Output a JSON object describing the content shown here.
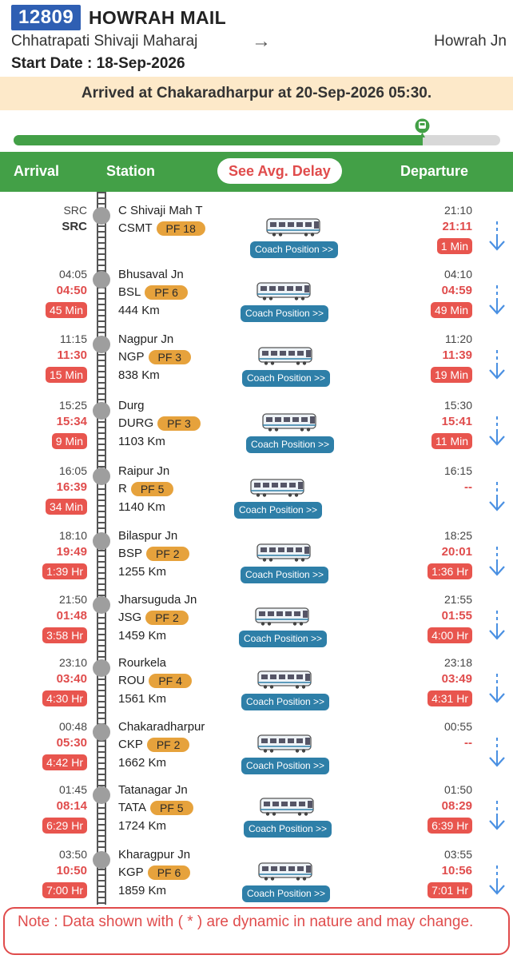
{
  "train": {
    "number": "12809",
    "name": "HOWRAH MAIL",
    "from": "Chhatrapati Shivaji Maharaj",
    "arrow": "→",
    "to": "Howrah Jn",
    "start_date": "Start Date : 18-Sep-2026"
  },
  "status": "Arrived at Chakaradharpur at 20-Sep-2026 05:30.",
  "progress_fraction": 0.84,
  "columns": {
    "arrival": "Arrival",
    "station": "Station",
    "avg_delay_button": "See Avg. Delay",
    "departure": "Departure"
  },
  "coach_button_label": "Coach Position >>",
  "stations": [
    {
      "arr_sched": "SRC",
      "arr_act": "SRC",
      "arr_delay": "",
      "name": "C Shivaji Mah T",
      "code": "CSMT",
      "pf": "PF 18",
      "km": "",
      "dep_sched": "21:10",
      "dep_act": "21:11",
      "dep_delay": "1 Min"
    },
    {
      "arr_sched": "04:05",
      "arr_act": "04:50",
      "arr_delay": "45 Min",
      "name": "Bhusaval Jn",
      "code": "BSL",
      "pf": "PF 6",
      "km": "444 Km",
      "dep_sched": "04:10",
      "dep_act": "04:59",
      "dep_delay": "49 Min"
    },
    {
      "arr_sched": "11:15",
      "arr_act": "11:30",
      "arr_delay": "15 Min",
      "name": "Nagpur Jn",
      "code": "NGP",
      "pf": "PF 3",
      "km": "838 Km",
      "dep_sched": "11:20",
      "dep_act": "11:39",
      "dep_delay": "19 Min"
    },
    {
      "arr_sched": "15:25",
      "arr_act": "15:34",
      "arr_delay": "9 Min",
      "name": "Durg",
      "code": "DURG",
      "pf": "PF 3",
      "km": "1103 Km",
      "dep_sched": "15:30",
      "dep_act": "15:41",
      "dep_delay": "11 Min"
    },
    {
      "arr_sched": "16:05",
      "arr_act": "16:39",
      "arr_delay": "34 Min",
      "name": "Raipur Jn",
      "code": "R",
      "pf": "PF 5",
      "km": "1140 Km",
      "dep_sched": "16:15",
      "dep_act": "--",
      "dep_delay": ""
    },
    {
      "arr_sched": "18:10",
      "arr_act": "19:49",
      "arr_delay": "1:39 Hr",
      "name": "Bilaspur Jn",
      "code": "BSP",
      "pf": "PF 2",
      "km": "1255 Km",
      "dep_sched": "18:25",
      "dep_act": "20:01",
      "dep_delay": "1:36 Hr"
    },
    {
      "arr_sched": "21:50",
      "arr_act": "01:48",
      "arr_delay": "3:58 Hr",
      "name": "Jharsuguda Jn",
      "code": "JSG",
      "pf": "PF 2",
      "km": "1459 Km",
      "dep_sched": "21:55",
      "dep_act": "01:55",
      "dep_delay": "4:00 Hr"
    },
    {
      "arr_sched": "23:10",
      "arr_act": "03:40",
      "arr_delay": "4:30 Hr",
      "name": "Rourkela",
      "code": "ROU",
      "pf": "PF 4",
      "km": "1561 Km",
      "dep_sched": "23:18",
      "dep_act": "03:49",
      "dep_delay": "4:31 Hr"
    },
    {
      "arr_sched": "00:48",
      "arr_act": "05:30",
      "arr_delay": "4:42 Hr",
      "name": "Chakaradharpur",
      "code": "CKP",
      "pf": "PF 2",
      "km": "1662 Km",
      "dep_sched": "00:55",
      "dep_act": "--",
      "dep_delay": ""
    },
    {
      "arr_sched": "01:45",
      "arr_act": "08:14",
      "arr_delay": "6:29 Hr",
      "name": "Tatanagar Jn",
      "code": "TATA",
      "pf": "PF 5",
      "km": "1724 Km",
      "dep_sched": "01:50",
      "dep_act": "08:29",
      "dep_delay": "6:39 Hr"
    },
    {
      "arr_sched": "03:50",
      "arr_act": "10:50",
      "arr_delay": "7:00 Hr",
      "name": "Kharagpur Jn",
      "code": "KGP",
      "pf": "PF 6",
      "km": "1859 Km",
      "dep_sched": "03:55",
      "dep_act": "10:56",
      "dep_delay": "7:01 Hr"
    }
  ],
  "note": "Note : Data shown with ( * ) are dynamic in nature and may change.",
  "colors": {
    "green": "#43a047",
    "red": "#e04c4c",
    "blue": "#2f5fb3",
    "pf": "#e6a23c",
    "coach_btn": "#2e7fa8"
  },
  "icons": {
    "marker": "train-marker-icon",
    "download": "arrow-down-icon",
    "coach": "train-coach-icon"
  }
}
